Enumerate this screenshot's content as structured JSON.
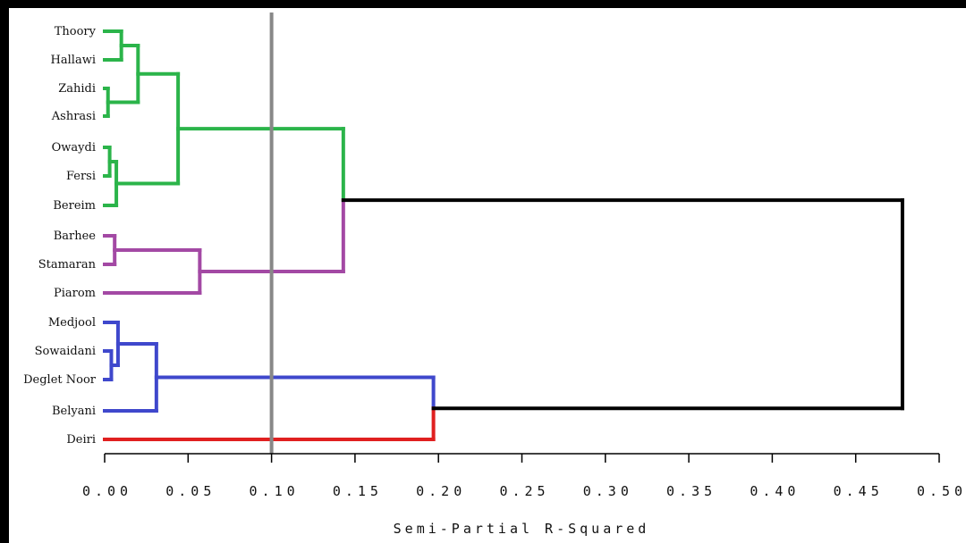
{
  "chart_data": {
    "type": "dendrogram",
    "orientation": "horizontal",
    "leaves": [
      "Thoory",
      "Hallawi",
      "Zahidi",
      "Ashrasi",
      "Owaydi",
      "Fersi",
      "Bereim",
      "Barhee",
      "Stamaran",
      "Piarom",
      "Medjool",
      "Sowaidani",
      "Deglet Noor",
      "Belyani",
      "Deiri"
    ],
    "xlabel": "Semi-Partial R-Squared",
    "xlim": [
      0.0,
      0.5
    ],
    "xticks": [
      "0.00",
      "0.05",
      "0.10",
      "0.15",
      "0.20",
      "0.25",
      "0.30",
      "0.35",
      "0.40",
      "0.45",
      "0.50"
    ],
    "cutoff": 0.1,
    "merges": [
      {
        "left": "Zahidi",
        "right": "Ashrasi",
        "height": 0.002,
        "color": "#2bb44a"
      },
      {
        "left": "Owaydi",
        "right": "Fersi",
        "height": 0.003,
        "color": "#2bb44a"
      },
      {
        "left": "Sowaidani",
        "right": "Deglet Noor",
        "height": 0.004,
        "color": "#3f48cc"
      },
      {
        "left": "Owaydi+Fersi",
        "right": "Bereim",
        "height": 0.007,
        "color": "#2bb44a"
      },
      {
        "left": "Barhee",
        "right": "Stamaran",
        "height": 0.006,
        "color": "#a349a4"
      },
      {
        "left": "Medjool",
        "right": "Sowaidani+Deglet Noor",
        "height": 0.008,
        "color": "#3f48cc"
      },
      {
        "left": "Thoory",
        "right": "Hallawi",
        "height": 0.01,
        "color": "#2bb44a"
      },
      {
        "left": "Thoory+Hallawi",
        "right": "Zahidi+Ashrasi",
        "height": 0.02,
        "color": "#2bb44a"
      },
      {
        "left": "Medjool group",
        "right": "Belyani",
        "height": 0.031,
        "color": "#3f48cc"
      },
      {
        "left": "Thoory..Ashrasi",
        "right": "Owaydi..Bereim",
        "height": 0.044,
        "color": "#2bb44a"
      },
      {
        "left": "Barhee+Stamaran",
        "right": "Piarom",
        "height": 0.057,
        "color": "#a349a4"
      },
      {
        "left": "Green cluster",
        "right": "Purple cluster",
        "height": 0.143,
        "color": "#2bb44a"
      },
      {
        "left": "Blue cluster",
        "right": "Deiri",
        "height": 0.197,
        "color": "#3f48cc"
      },
      {
        "left": "Green+Purple",
        "right": "Blue+Deiri",
        "height": 0.478,
        "color": "#000000"
      }
    ],
    "colors": {
      "green": "#2bb44a",
      "purple": "#a349a4",
      "blue": "#3f48cc",
      "red": "#e02020",
      "root": "#000000",
      "cutoff_line": "#888888"
    }
  }
}
